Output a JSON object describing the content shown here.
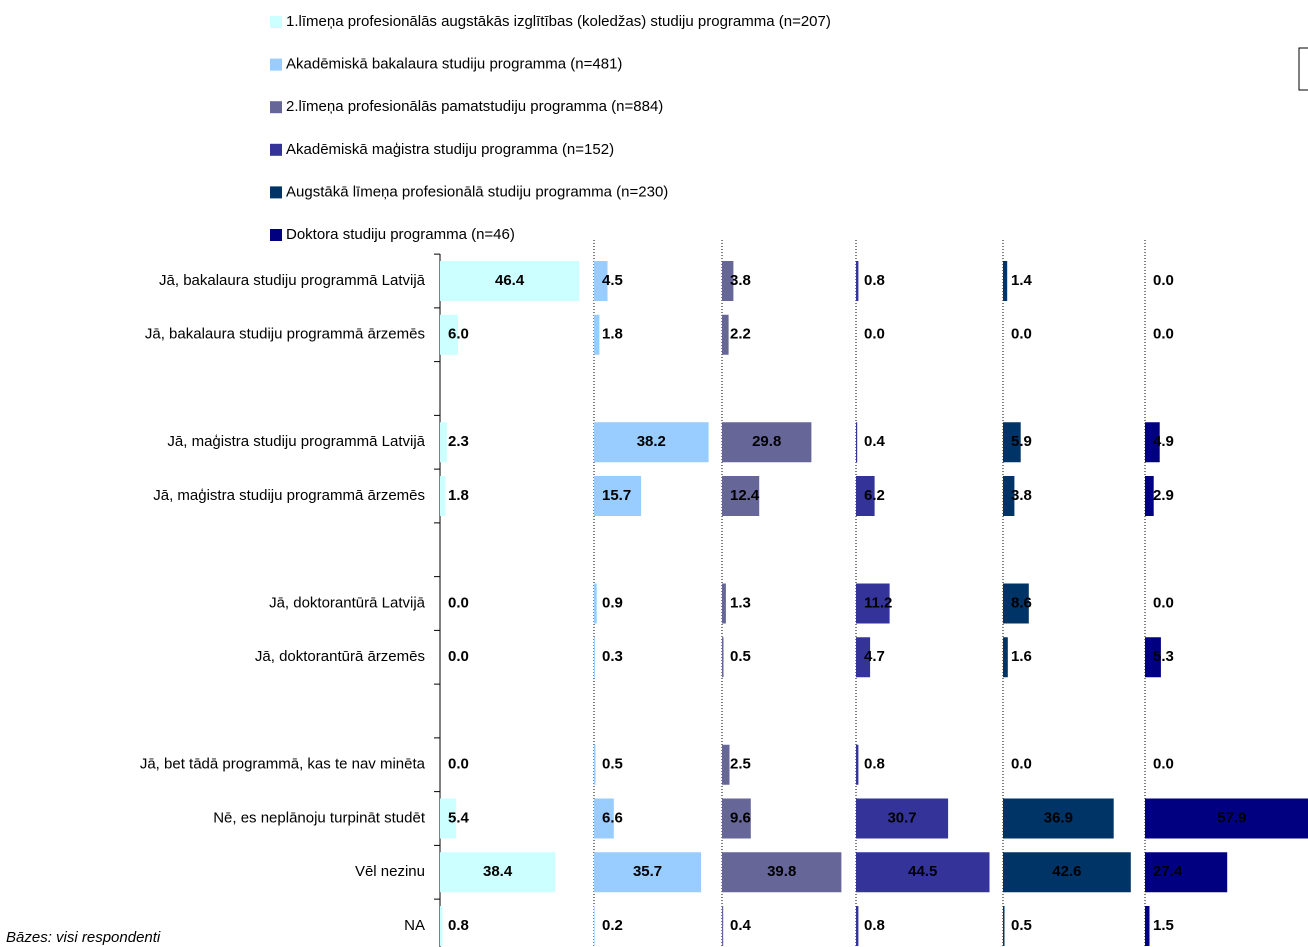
{
  "chart_data": {
    "type": "bar",
    "orientation": "horizontal",
    "layout": "small-multiples",
    "categories": [
      "Jā, bakalaura studiju programmā Latvijā",
      "Jā, bakalaura studiju programmā  ārzemēs",
      null,
      "Jā, maģistra studiju programmā Latvijā",
      "Jā, maģistra studiju programmā ārzemēs",
      null,
      "Jā, doktorantūrā Latvijā",
      "Jā, doktorantūrā ārzemēs",
      null,
      "Jā, bet tādā programmā, kas te nav minēta",
      "Nē, es neplānoju turpināt studēt",
      "Vēl nezinu",
      "NA"
    ],
    "series": [
      {
        "name": "1.līmeņa profesionālās augstākās izglītības (koledžas) studiju programma (n=207)",
        "color": "#ccffff",
        "values": [
          46.4,
          6.0,
          null,
          2.3,
          1.8,
          null,
          0.0,
          0.0,
          null,
          0.0,
          5.4,
          38.4,
          0.8
        ],
        "value_labels": [
          "46.4",
          "6.0",
          null,
          "2.3",
          "1.8",
          null,
          "0.0",
          "0.0",
          null,
          "0.0",
          "5.4",
          "38.4",
          "0.8"
        ]
      },
      {
        "name": "Akadēmiskā bakalaura studiju programma (n=481)",
        "color": "#99ccff",
        "values": [
          4.5,
          1.8,
          null,
          38.2,
          15.7,
          null,
          0.9,
          0.3,
          null,
          0.5,
          6.6,
          35.7,
          0.2
        ],
        "value_labels": [
          "4.5",
          "1.8",
          null,
          "38.2",
          "15.7",
          null,
          "0.9",
          "0.3",
          null,
          "0.5",
          "6.6",
          "35.7",
          "0.2"
        ]
      },
      {
        "name": "2.līmeņa profesionālās pamatstudiju programma (n=884)",
        "color": "#666699",
        "values": [
          3.8,
          2.2,
          null,
          29.8,
          12.4,
          null,
          1.3,
          0.5,
          null,
          2.5,
          9.6,
          39.8,
          0.4
        ],
        "value_labels": [
          "3.8",
          "2.2",
          null,
          "29.8",
          "12.4",
          null,
          "1.3",
          "0.5",
          null,
          "2.5",
          "9.6",
          "39.8",
          "0.4"
        ]
      },
      {
        "name": "Akadēmiskā maģistra studiju programma (n=152)",
        "color": "#333399",
        "values": [
          0.8,
          0.0,
          null,
          0.4,
          6.2,
          null,
          11.2,
          4.7,
          null,
          0.8,
          30.7,
          44.5,
          0.8
        ],
        "value_labels": [
          "0.8",
          "0.0",
          null,
          "0.4",
          "6.2",
          null,
          "11.2",
          "4.7",
          null,
          "0.8",
          "30.7",
          "44.5",
          "0.8"
        ]
      },
      {
        "name": "Augstākā līmeņa profesionālā studiju programma (n=230)",
        "color": "#003366",
        "values": [
          1.4,
          0.0,
          null,
          5.9,
          3.8,
          null,
          8.6,
          1.6,
          null,
          0.0,
          36.9,
          42.6,
          0.5
        ],
        "value_labels": [
          "1.4",
          "0.0",
          null,
          "5.9",
          "3.8",
          null,
          "8.6",
          "1.6",
          null,
          "0.0",
          "36.9",
          "42.6",
          "0.5"
        ]
      },
      {
        "name": "Doktora studiju programma (n=46)",
        "color": "#000080",
        "values": [
          0.0,
          0.0,
          null,
          4.9,
          2.9,
          null,
          0.0,
          5.3,
          null,
          0.0,
          57.9,
          27.4,
          1.5
        ],
        "value_labels": [
          "0.0",
          "0.0",
          null,
          "4.9",
          "2.9",
          null,
          "0.0",
          "5.3",
          null,
          "0.0",
          "57.9",
          "27.4",
          "1.5"
        ]
      }
    ],
    "legend": "top",
    "footnote": "Bāzes: visi respondenti"
  }
}
